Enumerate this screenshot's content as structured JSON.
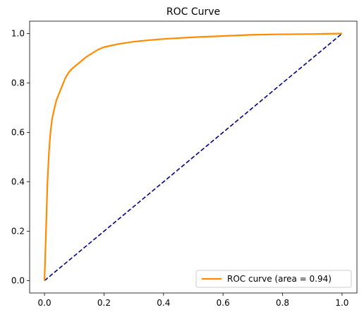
{
  "chart_data": {
    "type": "line",
    "title": "ROC Curve",
    "xlabel": "",
    "ylabel": "",
    "xlim": [
      -0.05,
      1.05
    ],
    "ylim": [
      -0.05,
      1.05
    ],
    "x_ticks": [
      0.0,
      0.2,
      0.4,
      0.6,
      0.8,
      1.0
    ],
    "x_tick_labels": [
      "0.0",
      "0.2",
      "0.4",
      "0.6",
      "0.8",
      "1.0"
    ],
    "y_ticks": [
      0.0,
      0.2,
      0.4,
      0.6,
      0.8,
      1.0
    ],
    "y_tick_labels": [
      "0.0",
      "0.2",
      "0.4",
      "0.6",
      "0.8",
      "1.0"
    ],
    "grid": false,
    "legend_position": "lower right",
    "series": [
      {
        "name": "ROC curve (area = 0.94)",
        "color": "#ff8c00",
        "style": "solid",
        "x": [
          0.0,
          0.005,
          0.01,
          0.015,
          0.02,
          0.025,
          0.03,
          0.04,
          0.05,
          0.06,
          0.07,
          0.08,
          0.09,
          0.1,
          0.12,
          0.14,
          0.16,
          0.18,
          0.2,
          0.25,
          0.3,
          0.35,
          0.4,
          0.5,
          0.6,
          0.7,
          0.8,
          0.9,
          0.95,
          1.0
        ],
        "y": [
          0.0,
          0.2,
          0.4,
          0.52,
          0.6,
          0.65,
          0.68,
          0.73,
          0.76,
          0.79,
          0.82,
          0.84,
          0.855,
          0.865,
          0.885,
          0.905,
          0.92,
          0.935,
          0.945,
          0.958,
          0.967,
          0.973,
          0.978,
          0.985,
          0.99,
          0.995,
          0.997,
          0.998,
          0.999,
          1.0
        ]
      },
      {
        "name": "",
        "color": "#000080",
        "style": "dashed",
        "x": [
          0.0,
          1.0
        ],
        "y": [
          0.0,
          1.0
        ]
      }
    ]
  }
}
